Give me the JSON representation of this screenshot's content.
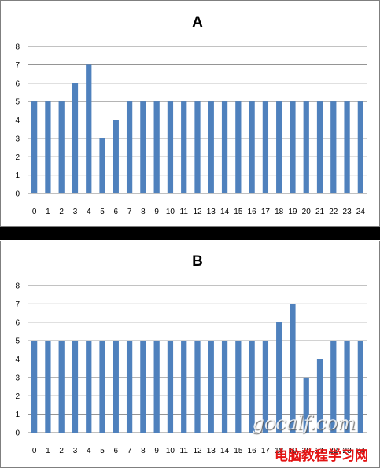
{
  "chart_data": [
    {
      "type": "bar",
      "title": "A",
      "categories": [
        "0",
        "1",
        "2",
        "3",
        "4",
        "5",
        "6",
        "7",
        "8",
        "9",
        "10",
        "11",
        "12",
        "13",
        "14",
        "15",
        "16",
        "17",
        "18",
        "19",
        "20",
        "21",
        "22",
        "23",
        "24"
      ],
      "values": [
        5,
        5,
        5,
        6,
        7,
        3,
        4,
        5,
        5,
        5,
        5,
        5,
        5,
        5,
        5,
        5,
        5,
        5,
        5,
        5,
        5,
        5,
        5,
        5,
        5
      ],
      "ylim": [
        0,
        8
      ],
      "yticks": [
        "0",
        "1",
        "2",
        "3",
        "4",
        "5",
        "6",
        "7",
        "8"
      ],
      "grid": true,
      "bar_color": "#4f81bd"
    },
    {
      "type": "bar",
      "title": "B",
      "categories": [
        "0",
        "1",
        "2",
        "3",
        "4",
        "5",
        "6",
        "7",
        "8",
        "9",
        "10",
        "11",
        "12",
        "13",
        "14",
        "15",
        "16",
        "17",
        "18",
        "19",
        "20",
        "21",
        "22",
        "23",
        "24"
      ],
      "values": [
        5,
        5,
        5,
        5,
        5,
        5,
        5,
        5,
        5,
        5,
        5,
        5,
        5,
        5,
        5,
        5,
        5,
        5,
        6,
        7,
        3,
        4,
        5,
        5,
        5
      ],
      "ylim": [
        0,
        8
      ],
      "yticks": [
        "0",
        "1",
        "2",
        "3",
        "4",
        "5",
        "6",
        "7",
        "8"
      ],
      "grid": true,
      "bar_color": "#4f81bd"
    }
  ],
  "watermark": {
    "site": "gocalf.com",
    "label": "电脑教程学习网"
  }
}
